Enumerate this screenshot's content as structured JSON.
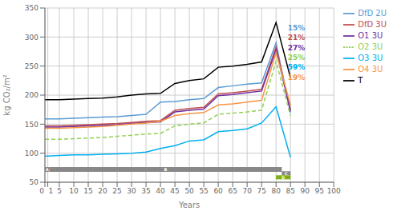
{
  "chart_data": {
    "type": "line",
    "xlabel": "Years",
    "ylabel": "kg CO₂/m²",
    "x": [
      0,
      1,
      5,
      10,
      15,
      20,
      25,
      30,
      35,
      40,
      45,
      50,
      55,
      60,
      65,
      70,
      75,
      80,
      85
    ],
    "xlim": [
      0,
      100
    ],
    "xticks": [
      0,
      1,
      5,
      10,
      15,
      20,
      25,
      30,
      35,
      40,
      45,
      50,
      55,
      60,
      65,
      70,
      75,
      80,
      85,
      90,
      95,
      100
    ],
    "ylim": [
      50,
      350
    ],
    "yticks": [
      50,
      100,
      150,
      200,
      250,
      300,
      350
    ],
    "grid": true,
    "legend": "right",
    "series": [
      {
        "name": "T",
        "color": "#000000",
        "line_style": "solid",
        "values": [
          192,
          192,
          192,
          193,
          194,
          195,
          197,
          200,
          202,
          203,
          220,
          225,
          228,
          248,
          250,
          253,
          257,
          325,
          230
        ]
      },
      {
        "name": "DfD 2U",
        "color": "#5b9bd5",
        "line_style": "solid",
        "values": [
          159,
          159,
          159,
          160,
          161,
          162,
          163,
          165,
          167,
          188,
          189,
          192,
          194,
          213,
          216,
          219,
          221,
          290,
          170
        ]
      },
      {
        "name": "DfD 3U",
        "color": "#c0504d",
        "line_style": "solid",
        "values": [
          147,
          147,
          147,
          148,
          149,
          150,
          151,
          153,
          155,
          156,
          174,
          177,
          179,
          202,
          204,
          207,
          210,
          283,
          175
        ]
      },
      {
        "name": "O1 3U",
        "color": "#7030a0",
        "line_style": "solid",
        "values": [
          145,
          145,
          145,
          146,
          147,
          148,
          149,
          151,
          153,
          154,
          171,
          174,
          176,
          199,
          201,
          204,
          207,
          278,
          172
        ]
      },
      {
        "name": "O2 3U",
        "color": "#92d050",
        "line_style": "dashed",
        "values": [
          124,
          124,
          124,
          125,
          126,
          127,
          129,
          131,
          133,
          134,
          147,
          150,
          152,
          167,
          169,
          171,
          174,
          258,
          165
        ]
      },
      {
        "name": "O3 3U",
        "color": "#00b0f0",
        "line_style": "solid",
        "values": [
          95,
          95,
          96,
          97,
          97,
          98,
          99,
          100,
          102,
          108,
          113,
          121,
          123,
          137,
          139,
          142,
          152,
          180,
          93
        ]
      },
      {
        "name": "O4 3U",
        "color": "#f79646",
        "line_style": "solid",
        "values": [
          143,
          143,
          143,
          144,
          145,
          146,
          148,
          150,
          152,
          155,
          165,
          168,
          170,
          183,
          185,
          188,
          191,
          273,
          183
        ]
      }
    ],
    "annotations": [
      {
        "text": "15%",
        "x": 83.5,
        "y": 316,
        "color": "#5b9bd5"
      },
      {
        "text": "21%",
        "x": 83.5,
        "y": 299,
        "color": "#c0504d"
      },
      {
        "text": "27%",
        "x": 83.5,
        "y": 282,
        "color": "#7030a0"
      },
      {
        "text": "25%",
        "x": 83.5,
        "y": 265,
        "color": "#92d050"
      },
      {
        "text": "59%",
        "x": 83.5,
        "y": 248,
        "color": "#00b0f0"
      },
      {
        "text": "19%",
        "x": 83.5,
        "y": 231,
        "color": "#f79646"
      }
    ],
    "boxes": [
      {
        "label": "A",
        "x0": 0,
        "x1": 1.5,
        "y0": 68,
        "y1": 76,
        "color": "#808080"
      },
      {
        "label": "B",
        "x0": 1.5,
        "x1": 82,
        "y0": 68,
        "y1": 76,
        "color": "#888888"
      },
      {
        "label": "C",
        "x0": 82,
        "x1": 85,
        "y0": 62,
        "y1": 69,
        "color": "#888888"
      },
      {
        "label": "D",
        "x0": 80,
        "x1": 85,
        "y0": 55,
        "y1": 62,
        "color": "#7db00e"
      }
    ]
  }
}
